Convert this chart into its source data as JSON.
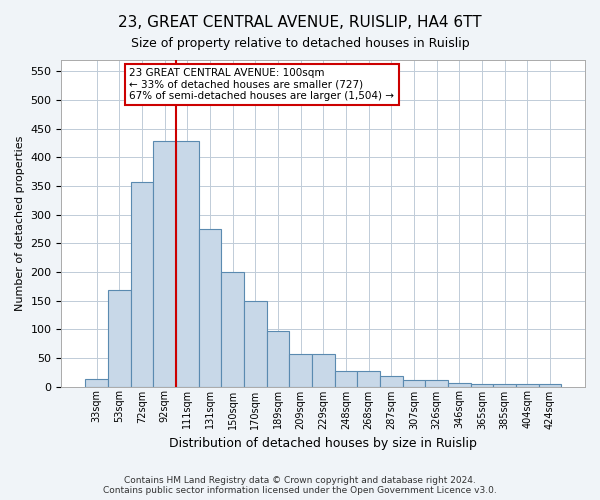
{
  "title": "23, GREAT CENTRAL AVENUE, RUISLIP, HA4 6TT",
  "subtitle": "Size of property relative to detached houses in Ruislip",
  "xlabel": "Distribution of detached houses by size in Ruislip",
  "ylabel": "Number of detached properties",
  "categories": [
    "33sqm",
    "53sqm",
    "72sqm",
    "92sqm",
    "111sqm",
    "131sqm",
    "150sqm",
    "170sqm",
    "189sqm",
    "209sqm",
    "229sqm",
    "248sqm",
    "268sqm",
    "287sqm",
    "307sqm",
    "326sqm",
    "346sqm",
    "365sqm",
    "385sqm",
    "404sqm",
    "424sqm"
  ],
  "values": [
    13,
    168,
    357,
    428,
    428,
    275,
    200,
    149,
    97,
    56,
    56,
    27,
    27,
    19,
    11,
    11,
    6,
    5,
    5,
    4,
    4
  ],
  "bar_color": "#c8d8e8",
  "bar_edge_color": "#5a8ab0",
  "vline_x": 3,
  "vline_color": "#cc0000",
  "annotation_text": "23 GREAT CENTRAL AVENUE: 100sqm\n← 33% of detached houses are smaller (727)\n67% of semi-detached houses are larger (1,504) →",
  "annotation_box_color": "#ffffff",
  "annotation_box_edge_color": "#cc0000",
  "ylim": [
    0,
    570
  ],
  "yticks": [
    0,
    50,
    100,
    150,
    200,
    250,
    300,
    350,
    400,
    450,
    500,
    550
  ],
  "footer": "Contains HM Land Registry data © Crown copyright and database right 2024.\nContains public sector information licensed under the Open Government Licence v3.0.",
  "bg_color": "#f0f4f8",
  "plot_bg_color": "#ffffff",
  "grid_color": "#c0ccd8"
}
